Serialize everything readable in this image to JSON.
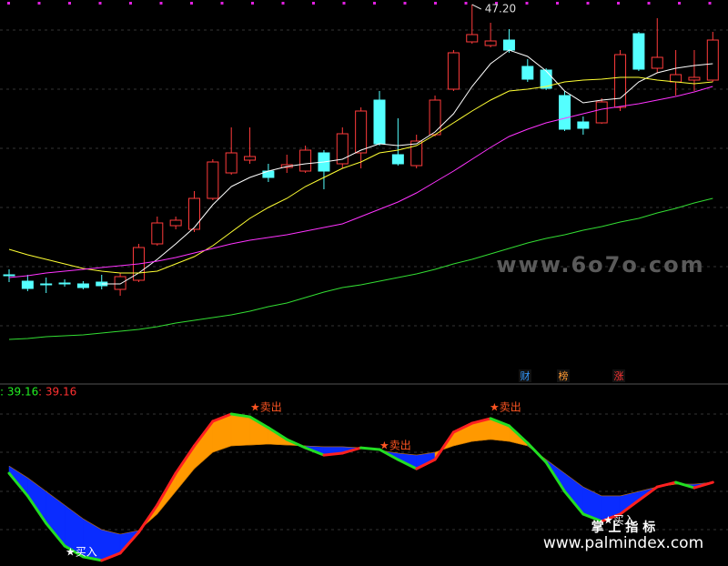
{
  "chart_data": [
    {
      "type": "candlestick",
      "open": [
        32.35,
        32.0,
        31.85,
        31.9,
        31.85,
        31.95,
        31.55,
        32.05,
        34.05,
        35.05,
        34.85,
        36.55,
        37.95,
        38.65,
        38.05,
        38.25,
        38.05,
        39.05,
        38.45,
        39.05,
        41.95,
        38.95,
        38.35,
        40.05,
        42.55,
        45.15,
        44.95,
        45.25,
        43.8,
        43.6,
        42.2,
        40.75,
        40.7,
        41.55,
        45.6,
        43.7,
        42.95,
        43.05,
        43.05
      ],
      "high": [
        32.65,
        32.35,
        32.2,
        32.1,
        32.0,
        32.35,
        32.45,
        34.05,
        35.55,
        35.55,
        36.95,
        38.7,
        40.45,
        40.45,
        38.45,
        38.95,
        39.45,
        39.2,
        40.45,
        41.55,
        42.45,
        40.95,
        40.05,
        42.2,
        44.7,
        47.2,
        46.2,
        45.85,
        44.2,
        43.7,
        42.45,
        41.05,
        42.05,
        44.7,
        45.7,
        46.45,
        44.7,
        44.7,
        45.7
      ],
      "low": [
        31.95,
        31.45,
        31.35,
        31.7,
        31.55,
        31.55,
        31.2,
        31.95,
        33.95,
        34.85,
        34.7,
        36.45,
        37.85,
        38.45,
        37.45,
        37.95,
        37.95,
        37.05,
        38.2,
        38.2,
        39.45,
        38.35,
        38.2,
        39.95,
        42.45,
        45.05,
        44.85,
        44.55,
        42.95,
        42.5,
        40.25,
        40.05,
        40.65,
        41.35,
        43.55,
        43.45,
        42.2,
        42.45,
        42.95
      ],
      "close": [
        32.35,
        31.6,
        31.85,
        31.9,
        31.65,
        31.75,
        32.25,
        33.85,
        35.2,
        35.35,
        36.55,
        38.55,
        39.05,
        38.85,
        37.7,
        38.4,
        39.2,
        38.05,
        40.1,
        41.35,
        39.55,
        38.45,
        39.7,
        41.95,
        44.55,
        45.55,
        45.2,
        44.7,
        43.1,
        42.6,
        40.35,
        40.4,
        41.85,
        44.45,
        43.65,
        44.3,
        43.35,
        43.2,
        45.25
      ],
      "high_labels": [
        null,
        null,
        null,
        null,
        null,
        null,
        null,
        null,
        null,
        null,
        null,
        null,
        null,
        null,
        null,
        null,
        null,
        null,
        null,
        null,
        null,
        null,
        null,
        null,
        null,
        "47.20",
        null,
        null,
        null,
        null,
        null,
        null,
        null,
        null,
        null,
        null,
        null,
        null,
        null
      ],
      "up_color": "#ff3b3b",
      "down_color": "#54ffff",
      "series": [
        {
          "color": "#ffffff",
          "values": [
            null,
            null,
            null,
            null,
            null,
            31.85,
            31.85,
            32.45,
            33.2,
            34.05,
            34.95,
            36.2,
            37.2,
            37.7,
            38.05,
            38.3,
            38.45,
            38.55,
            38.7,
            39.2,
            39.55,
            39.45,
            39.55,
            40.2,
            41.2,
            42.7,
            43.95,
            44.7,
            44.35,
            43.55,
            42.45,
            41.8,
            41.95,
            42.05,
            42.95,
            43.45,
            43.7,
            43.85,
            43.95
          ]
        },
        {
          "color": "#ffff33",
          "values": [
            33.75,
            33.45,
            33.2,
            32.95,
            32.7,
            32.55,
            32.45,
            32.45,
            32.55,
            32.95,
            33.35,
            33.95,
            34.7,
            35.45,
            36.05,
            36.55,
            37.2,
            37.7,
            38.2,
            38.55,
            39.05,
            39.2,
            39.45,
            40.05,
            40.7,
            41.35,
            41.95,
            42.45,
            42.55,
            42.7,
            42.95,
            43.05,
            43.1,
            43.2,
            43.2,
            43.05,
            42.95,
            42.85,
            42.95
          ]
        },
        {
          "color": "#ff33ff",
          "values": [
            32.2,
            32.3,
            32.45,
            32.55,
            32.65,
            32.75,
            32.85,
            32.95,
            33.1,
            33.3,
            33.55,
            33.8,
            34.05,
            34.25,
            34.4,
            34.55,
            34.75,
            34.95,
            35.15,
            35.55,
            35.95,
            36.35,
            36.85,
            37.45,
            38.05,
            38.7,
            39.35,
            39.95,
            40.35,
            40.7,
            40.95,
            41.2,
            41.45,
            41.6,
            41.75,
            41.95,
            42.15,
            42.4,
            42.7
          ]
        },
        {
          "color": "#33dd33",
          "values": [
            28.8,
            28.85,
            28.95,
            29.0,
            29.05,
            29.15,
            29.25,
            29.35,
            29.5,
            29.7,
            29.85,
            30.0,
            30.15,
            30.35,
            30.6,
            30.8,
            31.1,
            31.4,
            31.65,
            31.8,
            32.0,
            32.2,
            32.4,
            32.65,
            32.95,
            33.2,
            33.5,
            33.8,
            34.1,
            34.35,
            34.55,
            34.8,
            35.0,
            35.25,
            35.45,
            35.75,
            36.0,
            36.3,
            36.55
          ]
        }
      ],
      "ylim": [
        26.45,
        47.45
      ],
      "badges": [
        "财",
        "榜",
        "涨"
      ],
      "watermark": "www.6o7o.com"
    },
    {
      "type": "band",
      "series": [
        {
          "label": ": 39.16",
          "label_color": "#22ee22",
          "values": [
            43.4,
            32.8,
            20.0,
            9.4,
            4.3,
            2.6,
            6.0,
            15.8,
            28.5,
            43.4,
            56.2,
            67.7,
            71.1,
            69.8,
            64.7,
            59.2,
            55.3,
            51.9,
            52.8,
            55.3,
            54.5,
            49.8,
            45.5,
            49.8,
            62.6,
            66.8,
            69.0,
            65.6,
            57.5,
            48.5,
            34.9,
            24.3,
            20.9,
            24.3,
            30.7,
            37.0,
            39.16,
            36.6,
            39.16
          ]
        },
        {
          "label": ": 39.16",
          "label_color": "#ff3030",
          "values": [
            46.8,
            41.3,
            34.9,
            28.5,
            22.1,
            17.0,
            14.9,
            16.6,
            24.3,
            34.9,
            45.5,
            53.2,
            56.2,
            56.6,
            57.0,
            56.6,
            56.2,
            55.8,
            55.8,
            55.3,
            54.1,
            52.8,
            51.9,
            53.2,
            56.2,
            58.3,
            59.2,
            58.3,
            56.2,
            49.8,
            43.4,
            37.0,
            32.8,
            32.8,
            34.9,
            37.0,
            38.3,
            38.3,
            39.16
          ]
        }
      ],
      "ylim": [
        0,
        86
      ],
      "rise_color": "#ff2020",
      "fall_color": "#22dd22",
      "fill_above": "#ff9900",
      "fill_below": "#0a2cff",
      "signals": [
        "★买入",
        "★卖出",
        "★卖出",
        "★卖出",
        "★买入"
      ],
      "brand": "掌 上 指 标",
      "site": "www.palmindex.com"
    }
  ]
}
